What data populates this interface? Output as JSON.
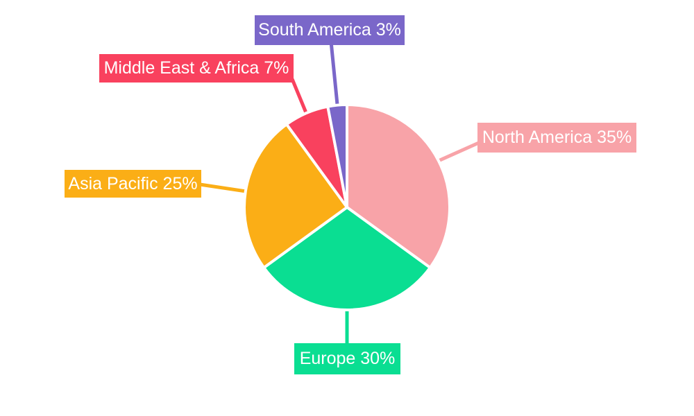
{
  "chart_data": {
    "type": "pie",
    "title": "",
    "direction": "clockwise",
    "start_angle_deg_from_top": 0,
    "legend_position": "none",
    "labels_style": "callout-boxes",
    "label_text_color": "#ffffff",
    "background_color": "#ffffff",
    "slices": [
      {
        "name": "North America",
        "value": 35,
        "unit": "%",
        "color": "#F8A3A8",
        "label": "North America 35%"
      },
      {
        "name": "Europe",
        "value": 30,
        "unit": "%",
        "color": "#0ADE92",
        "label": "Europe 30%"
      },
      {
        "name": "Asia Pacific",
        "value": 25,
        "unit": "%",
        "color": "#FBAE16",
        "label": "Asia Pacific 25%"
      },
      {
        "name": "Middle East & Africa",
        "value": 7,
        "unit": "%",
        "color": "#F9415E",
        "label": "Middle East & Africa 7%"
      },
      {
        "name": "South America",
        "value": 3,
        "unit": "%",
        "color": "#7A67C9",
        "label": "South America 3%"
      }
    ]
  }
}
